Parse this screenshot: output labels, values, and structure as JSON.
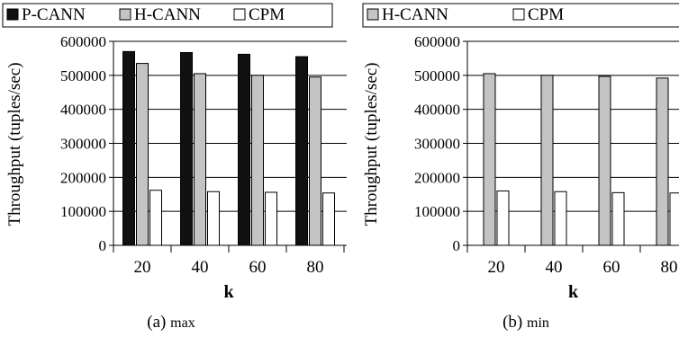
{
  "chart_data": [
    {
      "type": "bar",
      "caption_main": "(a) ",
      "caption_sub": "max",
      "xlabel": "k",
      "ylabel": "Throughput (tuples/sec)",
      "categories": [
        "20",
        "40",
        "60",
        "80"
      ],
      "ylim": [
        0,
        600000
      ],
      "yticks": [
        "0",
        "100000",
        "200000",
        "300000",
        "400000",
        "500000",
        "600000"
      ],
      "grid": true,
      "legend_placement": "top",
      "series": [
        {
          "name": "P-CANN",
          "color": "#111111",
          "values": [
            570000,
            567000,
            562000,
            555000
          ]
        },
        {
          "name": "H-CANN",
          "color": "#c4c4c4",
          "values": [
            535000,
            505000,
            500000,
            495000
          ]
        },
        {
          "name": "CPM",
          "color": "#ffffff",
          "values": [
            162000,
            158000,
            156000,
            154000
          ]
        }
      ]
    },
    {
      "type": "bar",
      "caption_main": "(b) ",
      "caption_sub": "min",
      "xlabel": "k",
      "ylabel": "Throughput (tuples/sec)",
      "categories": [
        "20",
        "40",
        "60",
        "80"
      ],
      "ylim": [
        0,
        600000
      ],
      "yticks": [
        "0",
        "100000",
        "200000",
        "300000",
        "400000",
        "500000",
        "600000"
      ],
      "grid": true,
      "legend_placement": "top",
      "series": [
        {
          "name": "H-CANN",
          "color": "#c4c4c4",
          "values": [
            505000,
            500000,
            497000,
            492000
          ]
        },
        {
          "name": "CPM",
          "color": "#ffffff",
          "values": [
            160000,
            158000,
            155000,
            154000
          ]
        }
      ]
    }
  ]
}
